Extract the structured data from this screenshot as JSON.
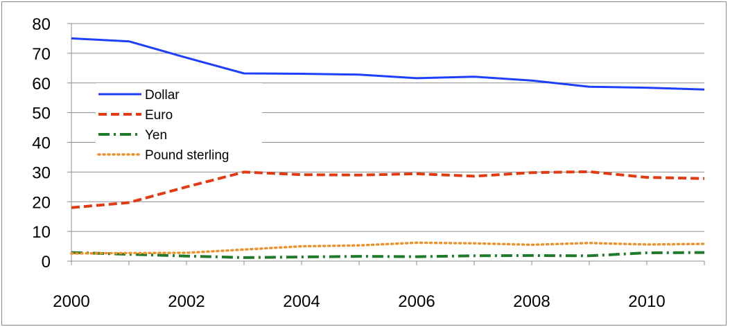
{
  "chart_data": {
    "type": "line",
    "title": "",
    "xlabel": "",
    "ylabel": "",
    "x": [
      2000,
      2001,
      2002,
      2003,
      2004,
      2005,
      2006,
      2007,
      2008,
      2009,
      2010,
      2011
    ],
    "xticks": [
      2000,
      2002,
      2004,
      2006,
      2008,
      2010
    ],
    "yticks": [
      0,
      10,
      20,
      30,
      40,
      50,
      60,
      70,
      80
    ],
    "xlim": [
      2000,
      2011
    ],
    "ylim": [
      0,
      80
    ],
    "grid": "horizontal",
    "legend_position": "left",
    "series": [
      {
        "name": "Dollar",
        "color": "#1f3fff",
        "style": "solid",
        "values": [
          75,
          74,
          68.5,
          63.2,
          63.1,
          62.8,
          61.6,
          62.1,
          60.8,
          58.7,
          58.4,
          57.8
        ]
      },
      {
        "name": "Euro",
        "color": "#e23a12",
        "style": "dashed",
        "values": [
          18,
          19.7,
          25,
          30,
          29.1,
          29,
          29.4,
          28.6,
          29.8,
          30.1,
          28.2,
          27.8
        ]
      },
      {
        "name": "Yen",
        "color": "#1f7a2a",
        "style": "dashdot",
        "values": [
          2.9,
          2.3,
          1.7,
          1.2,
          1.4,
          1.6,
          1.5,
          1.8,
          1.9,
          1.8,
          2.8,
          2.9
        ]
      },
      {
        "name": "Pound sterling",
        "color": "#f0902a",
        "style": "dotted",
        "values": [
          2.6,
          2.7,
          2.8,
          3.9,
          5.0,
          5.3,
          6.2,
          6.0,
          5.5,
          6.1,
          5.6,
          5.8
        ]
      }
    ]
  }
}
